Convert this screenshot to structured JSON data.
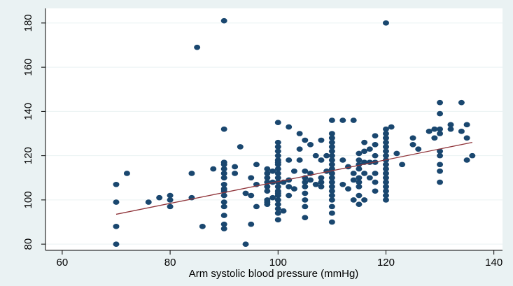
{
  "chart_data": {
    "type": "scatter",
    "x_label": "Arm systolic blood pressure (mmHg)",
    "xlim": [
      56.9,
      141.6
    ],
    "ylim": [
      77.2,
      186.6
    ],
    "xticks": [
      60,
      80,
      100,
      120,
      140
    ],
    "yticks": [
      80,
      100,
      120,
      140,
      160,
      180
    ],
    "grid": true,
    "series": [
      {
        "kind": "scatter",
        "color": "#1a476f",
        "x": [
          70,
          70,
          70,
          70,
          72,
          76,
          78,
          80,
          80,
          80,
          84,
          84,
          85,
          86,
          88,
          90,
          90,
          90,
          90,
          90,
          90,
          90,
          90,
          90,
          90,
          90,
          90,
          90,
          90,
          90,
          90,
          92,
          92,
          93,
          94,
          94,
          95,
          95,
          95,
          96,
          96,
          96,
          98,
          98,
          98,
          98,
          98,
          98,
          98,
          98,
          98,
          99,
          99,
          99,
          100,
          100,
          100,
          100,
          100,
          100,
          100,
          100,
          100,
          100,
          100,
          100,
          100,
          100,
          100,
          100,
          100,
          100,
          100,
          100,
          100,
          101,
          101,
          102,
          102,
          102,
          102,
          102,
          103,
          103,
          104,
          104,
          104,
          105,
          105,
          105,
          105,
          105,
          105,
          105,
          105,
          105,
          106,
          106,
          106,
          107,
          107,
          108,
          108,
          108,
          108,
          108,
          109,
          109,
          110,
          110,
          110,
          110,
          110,
          110,
          110,
          110,
          110,
          110,
          110,
          110,
          110,
          110,
          110,
          110,
          110,
          110,
          110,
          110,
          112,
          112,
          112,
          113,
          113,
          114,
          114,
          114,
          114,
          115,
          115,
          115,
          115,
          115,
          115,
          115,
          115,
          115,
          116,
          116,
          116,
          116,
          116,
          117,
          117,
          117,
          118,
          118,
          118,
          118,
          118,
          118,
          118,
          120,
          120,
          120,
          120,
          120,
          120,
          120,
          120,
          120,
          120,
          120,
          120,
          120,
          120,
          120,
          120,
          120,
          120,
          121,
          122,
          123,
          125,
          125,
          126,
          128,
          129,
          129,
          130,
          130,
          130,
          130,
          130,
          130,
          130,
          130,
          130,
          132,
          132,
          134,
          134,
          135,
          135,
          135,
          136
        ],
        "values": [
          107,
          99,
          88,
          80,
          112,
          99,
          101,
          102,
          100,
          97,
          112,
          101,
          169,
          88,
          114,
          181,
          132,
          117,
          116,
          114,
          112,
          110,
          107,
          105,
          104,
          102,
          99,
          97,
          93,
          89,
          87,
          115,
          112,
          124,
          80,
          103,
          110,
          102,
          89,
          116,
          107,
          97,
          114,
          112,
          110,
          108,
          106,
          104,
          100,
          99,
          98,
          113,
          108,
          101,
          135,
          126,
          124,
          122,
          120,
          118,
          117,
          116,
          114,
          112,
          110,
          108,
          106,
          104,
          103,
          102,
          100,
          98,
          96,
          94,
          91,
          108,
          95,
          133,
          118,
          109,
          106,
          102,
          113,
          105,
          130,
          123,
          118,
          127,
          113,
          110,
          108,
          106,
          103,
          100,
          97,
          92,
          125,
          112,
          109,
          120,
          107,
          127,
          118,
          110,
          108,
          106,
          120,
          113,
          136,
          130,
          128,
          126,
          124,
          122,
          120,
          118,
          116,
          114,
          112,
          110,
          108,
          106,
          104,
          102,
          100,
          97,
          94,
          90,
          136,
          118,
          107,
          115,
          105,
          136,
          112,
          109,
          100,
          121,
          118,
          116,
          114,
          110,
          108,
          106,
          102,
          98,
          126,
          122,
          117,
          112,
          100,
          123,
          117,
          110,
          129,
          125,
          120,
          117,
          112,
          108,
          104,
          180,
          132,
          130,
          128,
          126,
          124,
          122,
          120,
          118,
          116,
          114,
          112,
          110,
          108,
          106,
          104,
          102,
          100,
          133,
          121,
          116,
          128,
          125,
          123,
          131,
          132,
          128,
          144,
          139,
          132,
          130,
          122,
          120,
          116,
          113,
          108,
          134,
          132,
          144,
          131,
          134,
          128,
          118,
          120
        ]
      },
      {
        "kind": "line",
        "color": "#90353b",
        "x": [
          70,
          136
        ],
        "values": [
          93.5,
          126
        ]
      }
    ]
  }
}
